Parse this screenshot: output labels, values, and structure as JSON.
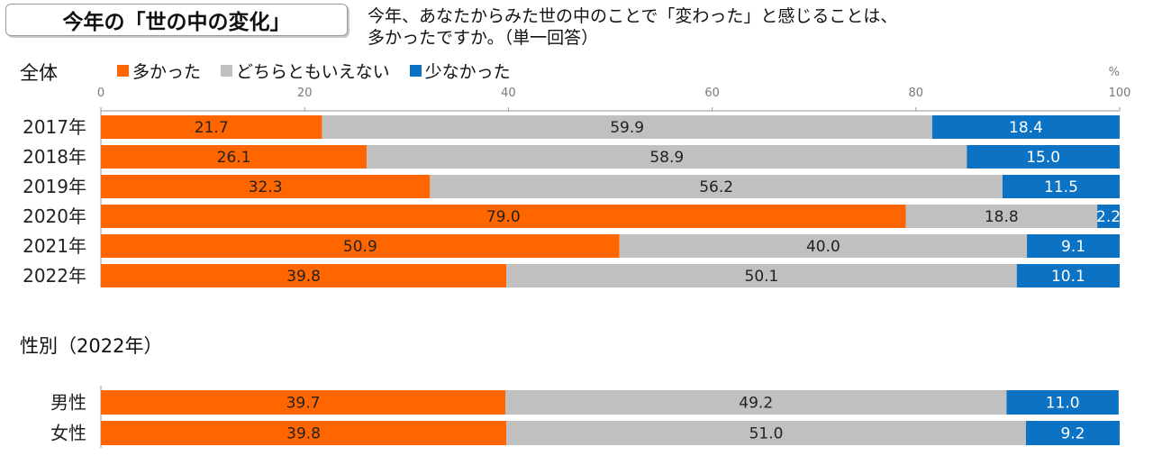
{
  "title": "今年の「世の中の変化」",
  "question": "今年、あなたからみた世の中のことで「変わった」と感じることは、\n多かったですか。（単一回答）",
  "colors": {
    "many": "#ff6600",
    "neither": "#c0c0c0",
    "few": "#0b72c4"
  },
  "chart_data": [
    {
      "type": "bar",
      "orientation": "horizontal",
      "stacked": true,
      "section_label": "全体",
      "unit": "%",
      "xlim": [
        0,
        100
      ],
      "xticks": [
        0,
        20,
        40,
        60,
        80,
        100
      ],
      "legend": [
        "多かった",
        "どちらともいえない",
        "少なかった"
      ],
      "categories": [
        "2017年",
        "2018年",
        "2019年",
        "2020年",
        "2021年",
        "2022年"
      ],
      "series": [
        {
          "name": "多かった",
          "values": [
            21.7,
            26.1,
            32.3,
            79.0,
            50.9,
            39.8
          ]
        },
        {
          "name": "どちらともいえない",
          "values": [
            59.9,
            58.9,
            56.2,
            18.8,
            40.0,
            50.1
          ]
        },
        {
          "name": "少なかった",
          "values": [
            18.4,
            15.0,
            11.5,
            2.2,
            9.1,
            10.1
          ]
        }
      ]
    },
    {
      "type": "bar",
      "orientation": "horizontal",
      "stacked": true,
      "section_label": "性別（2022年）",
      "xlim": [
        0,
        100
      ],
      "categories": [
        "男性",
        "女性"
      ],
      "series": [
        {
          "name": "多かった",
          "values": [
            39.7,
            39.8
          ]
        },
        {
          "name": "どちらともいえない",
          "values": [
            49.2,
            51.0
          ]
        },
        {
          "name": "少なかった",
          "values": [
            11.0,
            9.2
          ]
        }
      ]
    }
  ]
}
